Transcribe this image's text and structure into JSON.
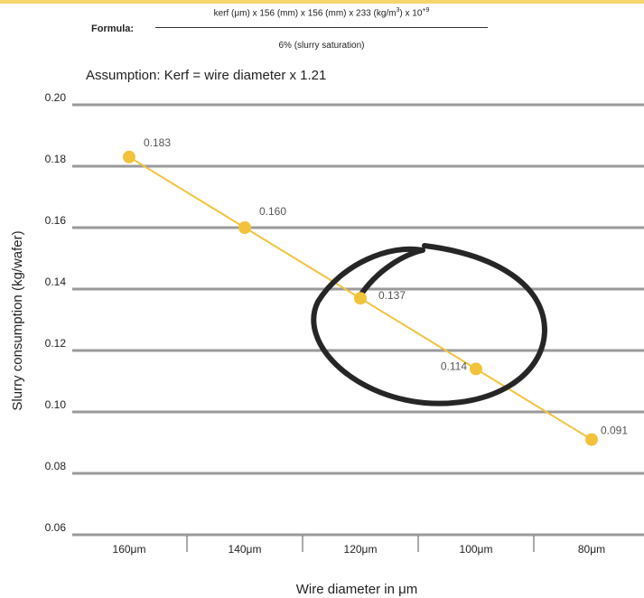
{
  "formula": {
    "label": "Formula:",
    "numerator_pre": "kerf (μm) x 156 (mm) x 156 (mm) x 233 (kg/m",
    "numerator_sup1": "3",
    "numerator_mid": ") x 10",
    "numerator_sup2": "+9",
    "denominator": "6% (slurry saturation)"
  },
  "assumption": "Assumption: Kerf = wire diameter x 1.21",
  "colors": {
    "accent": "#f2c23b",
    "line": "#f2c23b",
    "grid": "#9a9a9a",
    "circle": "#262626",
    "band": "#f6d66a"
  },
  "chart_data": {
    "type": "line",
    "categories": [
      "160μm",
      "140μm",
      "120μm",
      "100μm",
      "80μm"
    ],
    "values": [
      0.183,
      0.16,
      0.137,
      0.114,
      0.091
    ],
    "data_labels": [
      "0.183",
      "0.160",
      "0.137",
      "0.114",
      "0.091"
    ],
    "yticks": [
      "0.06",
      "0.08",
      "0.10",
      "0.12",
      "0.14",
      "0.16",
      "0.18",
      "0.20"
    ],
    "ylim": [
      0.06,
      0.2
    ],
    "xlabel": "Wire diameter in μm",
    "ylabel": "Slurry consumption (kg/wafer)",
    "grid": true,
    "annotation": "hand-drawn circle around 120μm and 100μm points"
  }
}
